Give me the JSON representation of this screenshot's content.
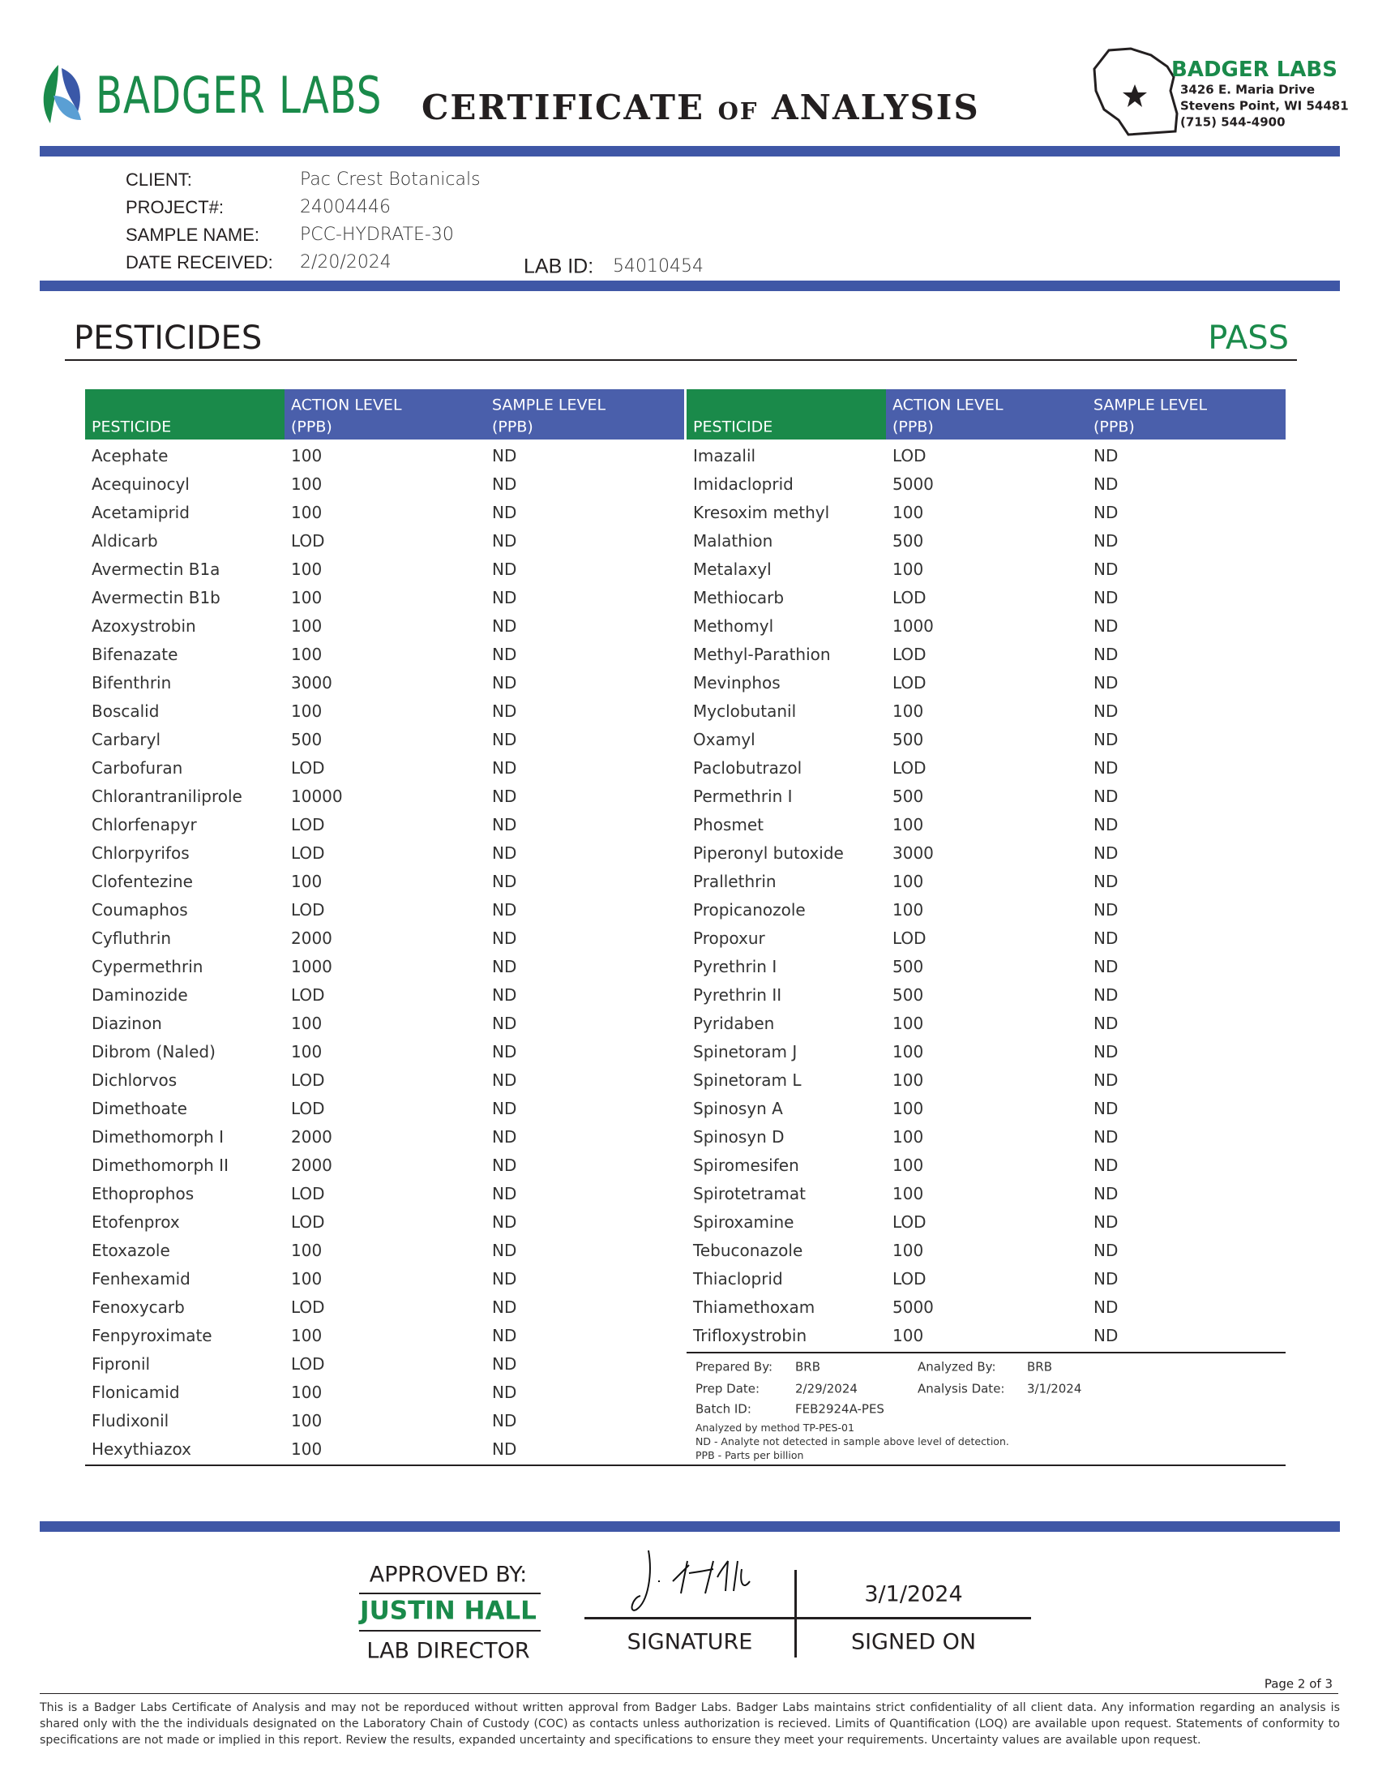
{
  "header": {
    "logo_text": "BADGER LABS",
    "title": "CERTIFICATE of ANALYSIS",
    "address": {
      "name": "BADGER LABS",
      "line1": "3426 E. Maria Drive",
      "line2": "Stevens Point, WI 54481",
      "phone": "(715) 544-4900"
    }
  },
  "client": {
    "fields": [
      {
        "label": "CLIENT:",
        "value": "Pac Crest Botanicals"
      },
      {
        "label": "PROJECT#:",
        "value": "24004446"
      },
      {
        "label": "SAMPLE NAME:",
        "value": "PCC-HYDRATE-30"
      },
      {
        "label": "DATE RECEIVED:",
        "value": "2/20/2024"
      }
    ],
    "lab_id": {
      "label": "LAB ID:",
      "value": "54010454"
    }
  },
  "section": {
    "title": "PESTICIDES",
    "result": "PASS"
  },
  "table": {
    "columns": [
      {
        "name": "PESTICIDE"
      },
      {
        "name": "ACTION LEVEL",
        "unit": "(PPB)"
      },
      {
        "name": "SAMPLE LEVEL",
        "unit": "(PPB)"
      }
    ],
    "left_rows": [
      [
        "Acephate",
        "100",
        "ND"
      ],
      [
        "Acequinocyl",
        "100",
        "ND"
      ],
      [
        "Acetamiprid",
        "100",
        "ND"
      ],
      [
        "Aldicarb",
        "LOD",
        "ND"
      ],
      [
        "Avermectin B1a",
        "100",
        "ND"
      ],
      [
        "Avermectin B1b",
        "100",
        "ND"
      ],
      [
        "Azoxystrobin",
        "100",
        "ND"
      ],
      [
        "Bifenazate",
        "100",
        "ND"
      ],
      [
        "Bifenthrin",
        "3000",
        "ND"
      ],
      [
        "Boscalid",
        "100",
        "ND"
      ],
      [
        "Carbaryl",
        "500",
        "ND"
      ],
      [
        "Carbofuran",
        "LOD",
        "ND"
      ],
      [
        "Chlorantraniliprole",
        "10000",
        "ND"
      ],
      [
        "Chlorfenapyr",
        "LOD",
        "ND"
      ],
      [
        "Chlorpyrifos",
        "LOD",
        "ND"
      ],
      [
        "Clofentezine",
        "100",
        "ND"
      ],
      [
        "Coumaphos",
        "LOD",
        "ND"
      ],
      [
        "Cyfluthrin",
        "2000",
        "ND"
      ],
      [
        "Cypermethrin",
        "1000",
        "ND"
      ],
      [
        "Daminozide",
        "LOD",
        "ND"
      ],
      [
        "Diazinon",
        "100",
        "ND"
      ],
      [
        "Dibrom (Naled)",
        "100",
        "ND"
      ],
      [
        "Dichlorvos",
        "LOD",
        "ND"
      ],
      [
        "Dimethoate",
        "LOD",
        "ND"
      ],
      [
        "Dimethomorph I",
        "2000",
        "ND"
      ],
      [
        "Dimethomorph II",
        "2000",
        "ND"
      ],
      [
        "Ethoprophos",
        "LOD",
        "ND"
      ],
      [
        "Etofenprox",
        "LOD",
        "ND"
      ],
      [
        "Etoxazole",
        "100",
        "ND"
      ],
      [
        "Fenhexamid",
        "100",
        "ND"
      ],
      [
        "Fenoxycarb",
        "LOD",
        "ND"
      ],
      [
        "Fenpyroximate",
        "100",
        "ND"
      ],
      [
        "Fipronil",
        "LOD",
        "ND"
      ],
      [
        "Flonicamid",
        "100",
        "ND"
      ],
      [
        "Fludixonil",
        "100",
        "ND"
      ],
      [
        "Hexythiazox",
        "100",
        "ND"
      ]
    ],
    "right_rows": [
      [
        "Imazalil",
        "LOD",
        "ND"
      ],
      [
        "Imidacloprid",
        "5000",
        "ND"
      ],
      [
        "Kresoxim methyl",
        "100",
        "ND"
      ],
      [
        "Malathion",
        "500",
        "ND"
      ],
      [
        "Metalaxyl",
        "100",
        "ND"
      ],
      [
        "Methiocarb",
        "LOD",
        "ND"
      ],
      [
        "Methomyl",
        "1000",
        "ND"
      ],
      [
        "Methyl-Parathion",
        "LOD",
        "ND"
      ],
      [
        "Mevinphos",
        "LOD",
        "ND"
      ],
      [
        "Myclobutanil",
        "100",
        "ND"
      ],
      [
        "Oxamyl",
        "500",
        "ND"
      ],
      [
        "Paclobutrazol",
        "LOD",
        "ND"
      ],
      [
        "Permethrin I",
        "500",
        "ND"
      ],
      [
        "Phosmet",
        "100",
        "ND"
      ],
      [
        "Piperonyl butoxide",
        "3000",
        "ND"
      ],
      [
        "Prallethrin",
        "100",
        "ND"
      ],
      [
        "Propicanozole",
        "100",
        "ND"
      ],
      [
        "Propoxur",
        "LOD",
        "ND"
      ],
      [
        "Pyrethrin I",
        "500",
        "ND"
      ],
      [
        "Pyrethrin II",
        "500",
        "ND"
      ],
      [
        "Pyridaben",
        "100",
        "ND"
      ],
      [
        "Spinetoram J",
        "100",
        "ND"
      ],
      [
        "Spinetoram L",
        "100",
        "ND"
      ],
      [
        "Spinosyn A",
        "100",
        "ND"
      ],
      [
        "Spinosyn D",
        "100",
        "ND"
      ],
      [
        "Spiromesifen",
        "100",
        "ND"
      ],
      [
        "Spirotetramat",
        "100",
        "ND"
      ],
      [
        "Spiroxamine",
        "LOD",
        "ND"
      ],
      [
        "Tebuconazole",
        "100",
        "ND"
      ],
      [
        "Thiacloprid",
        "LOD",
        "ND"
      ],
      [
        "Thiamethoxam",
        "5000",
        "ND"
      ],
      [
        "Trifloxystrobin",
        "100",
        "ND"
      ]
    ]
  },
  "notes": {
    "prepared_by": {
      "label": "Prepared By:",
      "value": "BRB"
    },
    "prep_date": {
      "label": "Prep Date:",
      "value": "2/29/2024"
    },
    "batch_id": {
      "label": "Batch ID:",
      "value": "FEB2924A-PES"
    },
    "analyzed_by": {
      "label": "Analyzed By:",
      "value": "BRB"
    },
    "analysis_date": {
      "label": "Analysis Date:",
      "value": "3/1/2024"
    },
    "method": "Analyzed by method TP-PES-01",
    "nd": "ND - Analyte not detected in sample above level of detection.",
    "ppb": "PPB - Parts per billion"
  },
  "approval": {
    "label": "APPROVED BY:",
    "name": "JUSTIN HALL",
    "role": "LAB DIRECTOR",
    "signature_label": "SIGNATURE",
    "date": "3/1/2024",
    "date_label": "SIGNED ON"
  },
  "footer": {
    "page": "Page 2 of 3",
    "disclaimer": "This is a Badger Labs Certificate of Analysis and may not be reporduced without written approval from Badger Labs. Badger Labs maintains strict confidentiality of all client data. Any information regarding an analysis is shared only with the the individuals designated on the Laboratory Chain of Custody (COC) as contacts unless authorization is recieved. Limits of Quantification (LOQ) are available upon request. Statements of conformity to specifications are not made or implied in this report. Review the results, expanded uncertainty and specifications to ensure they meet your requirements. Uncertainty values are available upon request."
  }
}
